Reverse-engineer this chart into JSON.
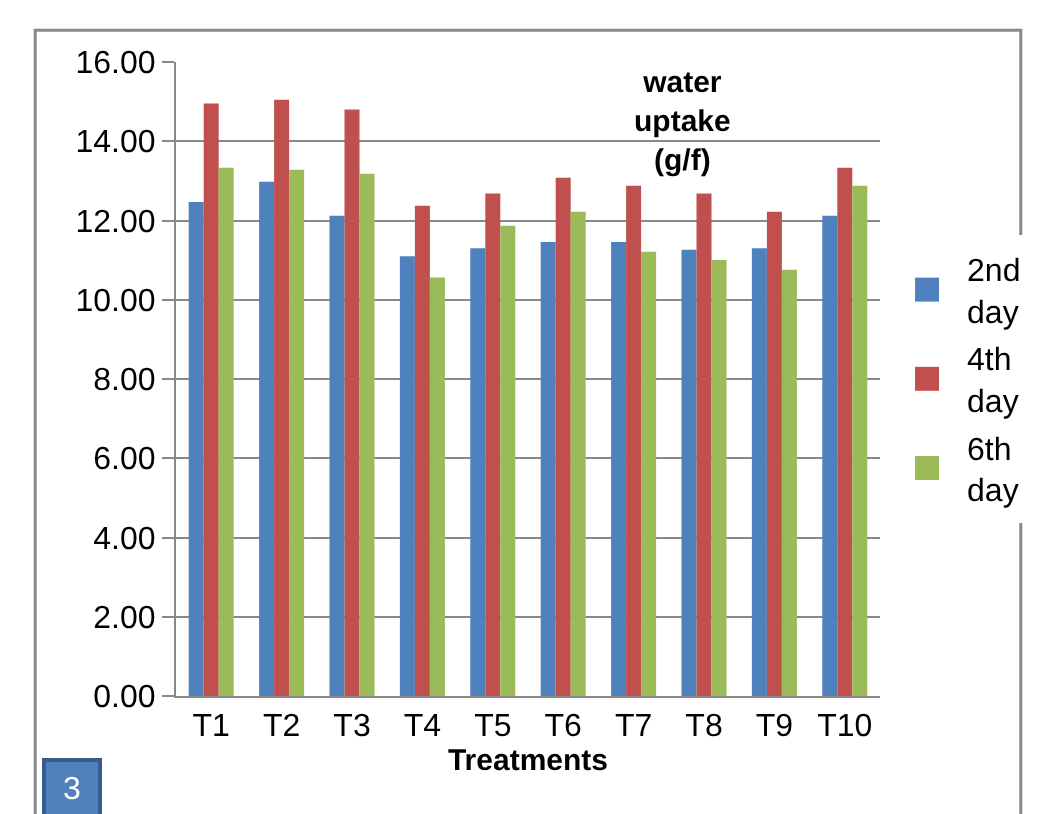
{
  "chart_data": {
    "type": "bar",
    "title": "water uptake (g/f)",
    "xlabel": "Treatments",
    "categories": [
      "T1",
      "T2",
      "T3",
      "T4",
      "T5",
      "T6",
      "T7",
      "T8",
      "T9",
      "T10"
    ],
    "series": [
      {
        "name": "2nd day",
        "color": "#4f81bd",
        "values": [
          12.47,
          12.98,
          12.12,
          11.1,
          11.3,
          11.46,
          11.46,
          11.26,
          11.3,
          12.12
        ]
      },
      {
        "name": "4th day",
        "color": "#c0504d",
        "values": [
          14.95,
          15.05,
          14.8,
          12.37,
          12.68,
          13.08,
          12.88,
          12.68,
          12.22,
          13.33
        ]
      },
      {
        "name": "6th day",
        "color": "#9bbb59",
        "values": [
          13.33,
          13.28,
          13.18,
          10.56,
          11.87,
          12.22,
          11.21,
          11.0,
          10.76,
          12.88
        ]
      }
    ],
    "ylim": [
      0,
      16
    ],
    "yticks": [
      {
        "value": 0,
        "label": "0.00"
      },
      {
        "value": 2,
        "label": "2.00"
      },
      {
        "value": 4,
        "label": "4.00"
      },
      {
        "value": 6,
        "label": "6.00"
      },
      {
        "value": 8,
        "label": "8.00"
      },
      {
        "value": 10,
        "label": "10.00"
      },
      {
        "value": 12,
        "label": "12.00"
      },
      {
        "value": 14,
        "label": "14.00"
      },
      {
        "value": 16,
        "label": "16.00"
      }
    ],
    "grid": "y",
    "legend": "right",
    "annotations": [
      "3"
    ]
  }
}
